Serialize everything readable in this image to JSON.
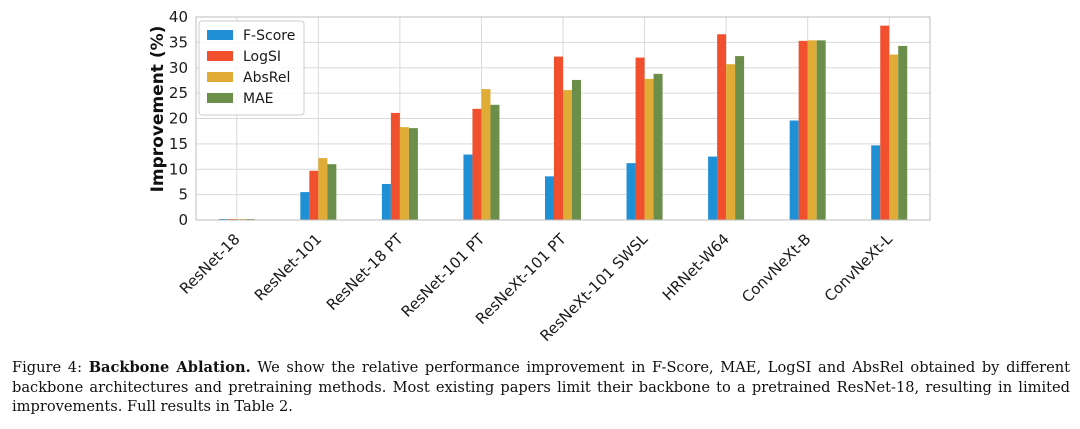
{
  "chart_data": {
    "type": "bar",
    "title": "",
    "xlabel": "",
    "ylabel": "Improvement (%)",
    "ylim": [
      0,
      40
    ],
    "yticks": [
      0,
      5,
      10,
      15,
      20,
      25,
      30,
      35,
      40
    ],
    "grid": true,
    "legend_position": "top-left",
    "categories": [
      "ResNet-18",
      "ResNet-101",
      "ResNet-18 PT",
      "ResNet-101 PT",
      "ResNeXt-101 PT",
      "ResNeXt-101 SWSL",
      "HRNet-W64",
      "ConvNeXt-B",
      "ConvNeXt-L"
    ],
    "series": [
      {
        "name": "F-Score",
        "color": "#1f8fd6",
        "values": [
          0.2,
          5.5,
          7.1,
          12.9,
          8.6,
          11.2,
          12.5,
          19.6,
          14.7
        ]
      },
      {
        "name": "LogSI",
        "color": "#f0502e",
        "values": [
          0.2,
          9.7,
          21.1,
          21.9,
          32.2,
          32.0,
          36.6,
          35.3,
          38.3
        ]
      },
      {
        "name": "AbsRel",
        "color": "#e0ac36",
        "values": [
          0.2,
          12.2,
          18.3,
          25.8,
          25.6,
          27.8,
          30.7,
          35.4,
          32.6
        ]
      },
      {
        "name": "MAE",
        "color": "#6b8f4a",
        "values": [
          0.2,
          11.0,
          18.1,
          22.7,
          27.6,
          28.8,
          32.3,
          35.4,
          34.3
        ]
      }
    ]
  },
  "caption": {
    "prefix": "Figure 4: ",
    "bold": "Backbone Ablation.",
    "text": " We show the relative performance improvement in F-Score, MAE, LogSI and AbsRel obtained by different backbone architectures and pretraining methods. Most existing papers limit their backbone to a pretrained ResNet-18, resulting in limited improvements. Full results in Table 2."
  }
}
